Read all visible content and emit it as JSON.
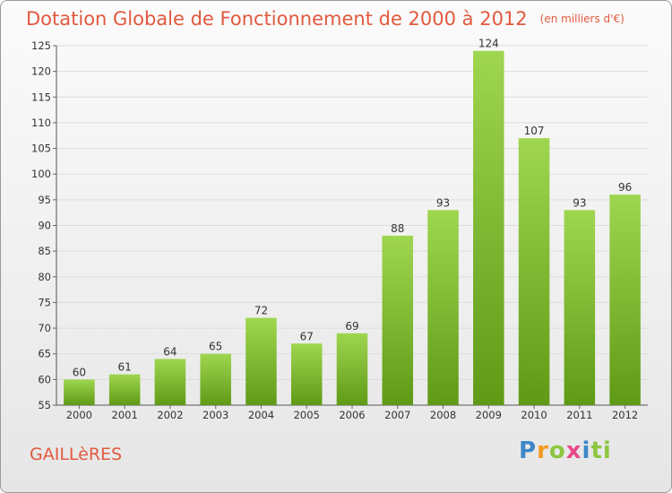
{
  "header": {
    "title": "Dotation Globale de Fonctionnement de 2000 à 2012",
    "subtitle": "(en milliers d'€)"
  },
  "footer": {
    "commune": "GAILLèRES",
    "brand_letters": [
      "P",
      "r",
      "o",
      "x",
      "i",
      "t",
      "i"
    ]
  },
  "colors": {
    "title": "#e2593f",
    "bar_top": "#9fd650",
    "bar_bottom": "#5f9a16",
    "grid": "#dddddd"
  },
  "chart_data": {
    "type": "bar",
    "title": "Dotation Globale de Fonctionnement de 2000 à 2012",
    "subtitle": "(en milliers d'€)",
    "categories": [
      "2000",
      "2001",
      "2002",
      "2003",
      "2004",
      "2005",
      "2006",
      "2007",
      "2008",
      "2009",
      "2010",
      "2011",
      "2012"
    ],
    "values": [
      60,
      61,
      64,
      65,
      72,
      67,
      69,
      88,
      93,
      124,
      107,
      93,
      96
    ],
    "ylim": [
      55,
      125
    ],
    "yticks": [
      55,
      60,
      65,
      70,
      75,
      80,
      85,
      90,
      95,
      100,
      105,
      110,
      115,
      120,
      125
    ],
    "grid": true,
    "data_labels": true
  }
}
